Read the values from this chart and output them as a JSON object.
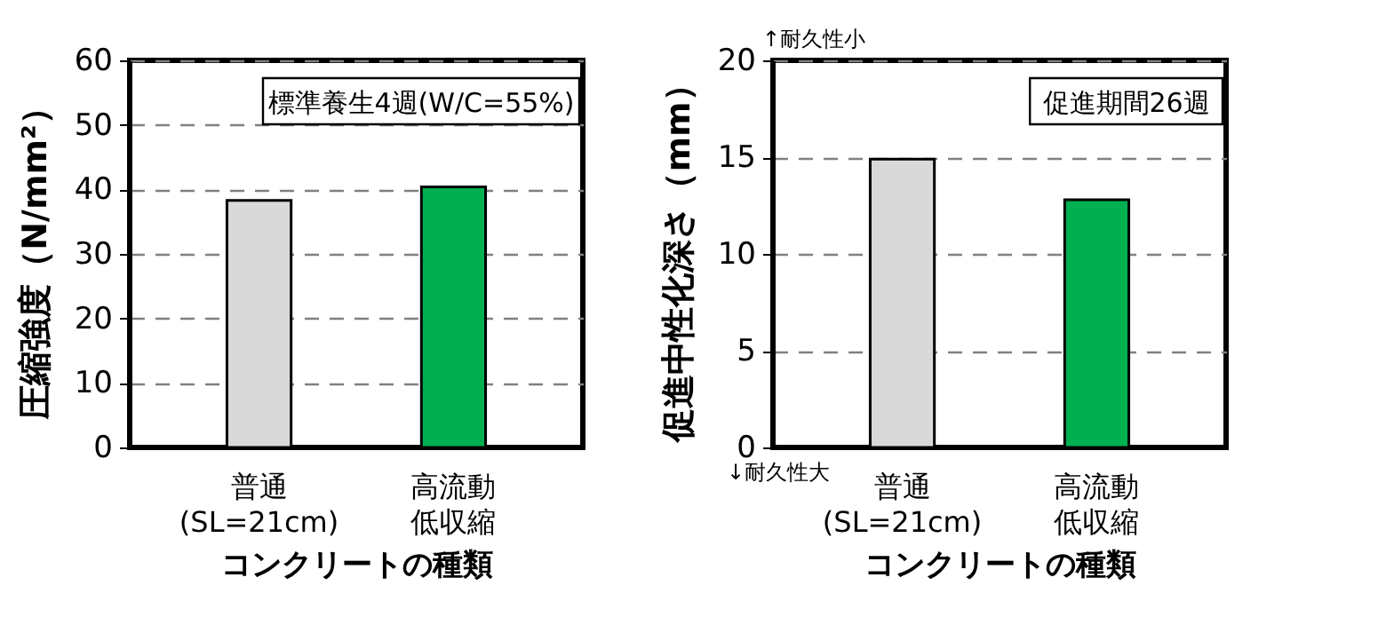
{
  "chart_data": [
    {
      "type": "bar",
      "categories": [
        "普通\n(SL=21cm)",
        "高流動低収縮"
      ],
      "values": [
        38.3,
        40.4
      ],
      "colors": [
        "#d9d9d9",
        "#00b050"
      ],
      "ylim": [
        0,
        60
      ],
      "yticks": [
        0,
        10,
        20,
        30,
        40,
        50,
        60
      ],
      "grid": "y",
      "ylabel": "圧縮強度（N/mm²）",
      "xlabel": "コンクリートの種類",
      "annotations": [
        "標準養生4週(W/C=55%)"
      ]
    },
    {
      "type": "bar",
      "categories": [
        "普通\n(SL=21cm)",
        "高流動低収縮"
      ],
      "values": [
        14.9,
        12.8
      ],
      "colors": [
        "#d9d9d9",
        "#00b050"
      ],
      "ylim": [
        0,
        20
      ],
      "yticks": [
        0,
        5,
        10,
        15,
        20
      ],
      "grid": "y",
      "ylabel": "促進中性化深さ（mm）",
      "xlabel": "コンクリートの種類",
      "annotations": [
        "促進期間26週",
        "↑耐久性小",
        "↓耐久性大"
      ]
    }
  ]
}
